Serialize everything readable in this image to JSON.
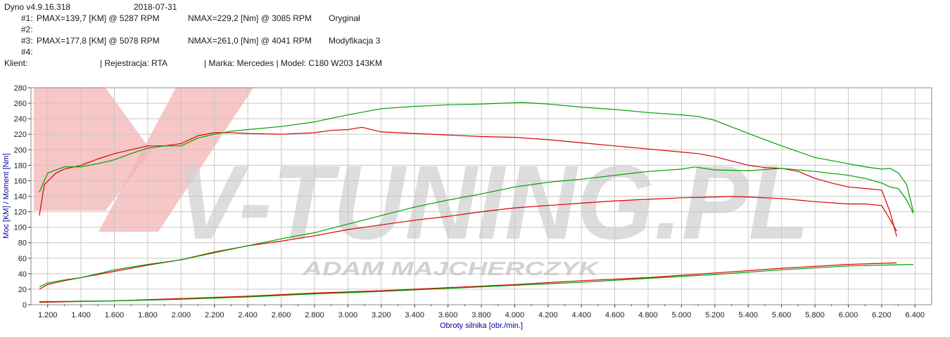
{
  "header": {
    "app_version": "Dyno v4.9.16.318",
    "date": "2018-07-31",
    "run1_label": "#1:",
    "run1_pmax": "PMAX=139,7 [KM] @ 5287 RPM",
    "run1_nmax": "NMAX=229,2 [Nm] @ 3085 RPM",
    "run1_name": "Oryginał",
    "run2_label": "#2:",
    "run3_label": "#3:",
    "run3_pmax": "PMAX=177,8 [KM] @ 5078 RPM",
    "run3_nmax": "NMAX=261,0 [Nm] @ 4041 RPM",
    "run3_name": "Modyfikacja 3",
    "run4_label": "#4:",
    "client_label": "Klient:",
    "registration": "| Rejestracja: RTA",
    "vehicle": "| Marka: Mercedes | Model: C180 W203 143KM"
  },
  "watermark": {
    "brand": "V-TUNING.PL",
    "author": "ADAM MAJCHERCZYK"
  },
  "colors": {
    "original": "#dd0000",
    "modified": "#00a000",
    "grid": "#c8c8c8",
    "axis_label": "#0000a0"
  },
  "chart_data": {
    "type": "line",
    "xlabel": "Obroty silnika [obr./min.]",
    "ylabel": "Moc [KM] / Moment [Nm]",
    "xlim": [
      1100,
      6500
    ],
    "ylim": [
      0,
      280
    ],
    "x_ticks": [
      "1.200",
      "1.400",
      "1.600",
      "1.800",
      "2.000",
      "2.200",
      "2.400",
      "2.600",
      "2.800",
      "3.000",
      "3.200",
      "3.400",
      "3.600",
      "3.800",
      "4.000",
      "4.200",
      "4.400",
      "4.600",
      "4.800",
      "5.000",
      "5.200",
      "5.400",
      "5.600",
      "5.800",
      "6.000",
      "6.200",
      "6.400"
    ],
    "y_ticks": [
      "0",
      "20",
      "40",
      "60",
      "80",
      "100",
      "120",
      "140",
      "160",
      "180",
      "200",
      "220",
      "240",
      "260",
      "280"
    ],
    "grid": true,
    "series": [
      {
        "run": "#1",
        "quantity": "torque",
        "color": "#dd0000",
        "x": [
          1150,
          1180,
          1250,
          1300,
          1400,
          1500,
          1600,
          1700,
          1800,
          1900,
          2000,
          2100,
          2200,
          2300,
          2400,
          2600,
          2800,
          2900,
          3000,
          3085,
          3200,
          3400,
          3600,
          3800,
          4000,
          4200,
          4400,
          4600,
          4800,
          5000,
          5100,
          5200,
          5400,
          5500,
          5600,
          5700,
          5800,
          5900,
          6000,
          6100,
          6200,
          6250,
          6290
        ],
        "y": [
          115,
          155,
          170,
          175,
          180,
          188,
          195,
          200,
          205,
          205,
          208,
          218,
          222,
          222,
          221,
          220,
          222,
          225,
          226,
          229,
          223,
          221,
          219,
          217,
          216,
          213,
          209,
          205,
          201,
          197,
          195,
          191,
          180,
          177,
          176,
          172,
          163,
          157,
          152,
          150,
          148,
          120,
          88
        ]
      },
      {
        "run": "#3",
        "quantity": "torque",
        "color": "#00a000",
        "x": [
          1150,
          1200,
          1300,
          1400,
          1500,
          1600,
          1700,
          1800,
          1900,
          2000,
          2100,
          2200,
          2300,
          2400,
          2600,
          2800,
          3000,
          3200,
          3400,
          3600,
          3800,
          4041,
          4200,
          4400,
          4600,
          4800,
          5000,
          5100,
          5200,
          5400,
          5600,
          5800,
          6000,
          6100,
          6200,
          6250,
          6300,
          6350,
          6390
        ],
        "y": [
          145,
          170,
          178,
          178,
          182,
          187,
          195,
          202,
          205,
          205,
          215,
          220,
          224,
          226,
          230,
          236,
          245,
          253,
          256,
          258,
          259,
          261,
          259,
          255,
          252,
          248,
          245,
          243,
          238,
          221,
          205,
          190,
          182,
          178,
          175,
          176,
          170,
          155,
          120
        ]
      },
      {
        "run": "#1",
        "quantity": "power",
        "color": "#dd0000",
        "x": [
          1150,
          1200,
          1300,
          1400,
          1500,
          1600,
          1800,
          2000,
          2200,
          2400,
          2600,
          2800,
          3000,
          3200,
          3400,
          3600,
          3800,
          4000,
          4200,
          4400,
          4600,
          4800,
          5000,
          5200,
          5287,
          5400,
          5600,
          5800,
          6000,
          6100,
          6200,
          6250,
          6290
        ],
        "y": [
          20,
          26,
          31,
          35,
          39,
          43,
          51,
          58,
          68,
          76,
          82,
          89,
          97,
          103,
          109,
          114,
          120,
          125,
          128,
          131,
          134,
          136,
          138,
          139,
          139.7,
          139,
          137,
          133,
          130,
          130,
          128,
          110,
          95
        ]
      },
      {
        "run": "#3",
        "quantity": "power",
        "color": "#00a000",
        "x": [
          1150,
          1200,
          1300,
          1400,
          1500,
          1600,
          1800,
          2000,
          2200,
          2400,
          2600,
          2800,
          3000,
          3200,
          3400,
          3600,
          3800,
          4000,
          4200,
          4400,
          4600,
          4800,
          5000,
          5078,
          5200,
          5400,
          5600,
          5800,
          6000,
          6100,
          6200,
          6250,
          6300,
          6350,
          6390
        ],
        "y": [
          23,
          28,
          32,
          35,
          40,
          45,
          52,
          58,
          67,
          76,
          85,
          93,
          104,
          115,
          126,
          135,
          143,
          152,
          158,
          162,
          167,
          172,
          175,
          177.8,
          174,
          173,
          176,
          172,
          167,
          163,
          157,
          152,
          150,
          135,
          118
        ]
      },
      {
        "run": "#1",
        "quantity": "loss",
        "color": "#dd0000",
        "x": [
          1150,
          1600,
          2000,
          2400,
          2800,
          3200,
          3600,
          4000,
          4400,
          4800,
          5200,
          5600,
          6000,
          6290
        ],
        "y": [
          3,
          5,
          8,
          11,
          15,
          18,
          22,
          26,
          31,
          35,
          41,
          47,
          52,
          54
        ]
      },
      {
        "run": "#3",
        "quantity": "loss",
        "color": "#00a000",
        "x": [
          1150,
          1600,
          2000,
          2400,
          2800,
          3200,
          3600,
          4000,
          4400,
          4800,
          5200,
          5600,
          6000,
          6390
        ],
        "y": [
          4,
          5,
          7,
          10,
          14,
          17,
          21,
          25,
          29,
          34,
          39,
          45,
          50,
          52
        ]
      }
    ]
  }
}
